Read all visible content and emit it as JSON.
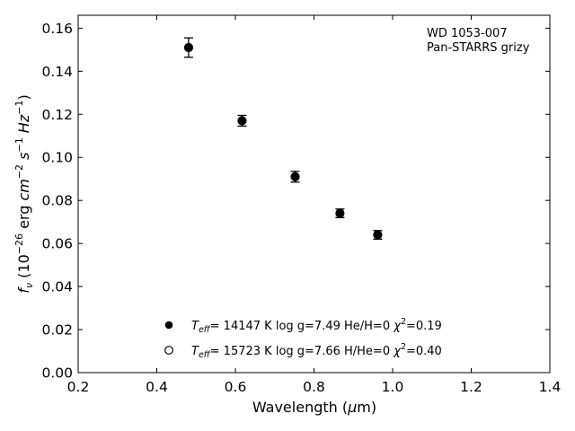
{
  "chart_data": {
    "type": "scatter",
    "annotation": [
      "WD 1053-007",
      "Pan-STARRS grizy"
    ],
    "xlabel": "Wavelength (μm)",
    "ylabel": "f_ν (10^-26 erg cm^-2 s^-1 Hz^-1)",
    "xlim": [
      0.2,
      1.4
    ],
    "ylim": [
      0.0,
      0.166
    ],
    "xticks": [
      "0.2",
      "0.4",
      "0.6",
      "0.8",
      "1.0",
      "1.2",
      "1.4"
    ],
    "yticks": [
      "0.00",
      "0.02",
      "0.04",
      "0.06",
      "0.08",
      "0.10",
      "0.12",
      "0.14",
      "0.16"
    ],
    "grid": false,
    "legend_placement": "lower-center",
    "series": [
      {
        "name": "T_eff= 14147 K  log g=7.49  He/H=0  χ²=0.19",
        "marker": "filled-circle",
        "color": "#000000",
        "points": [
          {
            "x": 0.481,
            "y": 0.151,
            "yerr": 0.0045
          },
          {
            "x": 0.617,
            "y": 0.117,
            "yerr": 0.0025
          },
          {
            "x": 0.752,
            "y": 0.091,
            "yerr": 0.0025
          },
          {
            "x": 0.866,
            "y": 0.074,
            "yerr": 0.002
          },
          {
            "x": 0.962,
            "y": 0.064,
            "yerr": 0.002
          }
        ]
      },
      {
        "name": "T_eff= 15723 K  log g=7.66  H/He=0  χ²=0.40",
        "marker": "open-circle",
        "color": "#000000",
        "points": [
          {
            "x": 0.481,
            "y": 0.151
          },
          {
            "x": 0.617,
            "y": 0.117
          },
          {
            "x": 0.752,
            "y": 0.091
          },
          {
            "x": 0.866,
            "y": 0.074
          },
          {
            "x": 0.962,
            "y": 0.064
          }
        ]
      }
    ],
    "legend": [
      {
        "marker": "filled-circle",
        "teff_label": "T",
        "teff_sub": "eff",
        "text_a": "= 14147 K  log g=7.49  He/H=0  ",
        "chi": "χ",
        "chi_sup": "2",
        "text_b": "=0.19"
      },
      {
        "marker": "open-circle",
        "teff_label": "T",
        "teff_sub": "eff",
        "text_a": "= 15723 K  log g=7.66  H/He=0  ",
        "chi": "χ",
        "chi_sup": "2",
        "text_b": "=0.40"
      }
    ]
  }
}
